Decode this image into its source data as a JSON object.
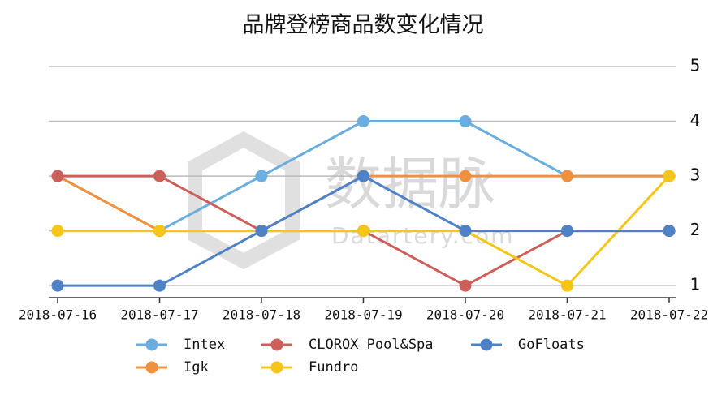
{
  "chart_data": {
    "type": "line",
    "title": "品牌登榜商品数变化情况",
    "categories": [
      "2018-07-16",
      "2018-07-17",
      "2018-07-18",
      "2018-07-19",
      "2018-07-20",
      "2018-07-21",
      "2018-07-22"
    ],
    "series": [
      {
        "name": "Intex",
        "color": "#6aaee0",
        "values": [
          3,
          2,
          3,
          4,
          4,
          3,
          3
        ]
      },
      {
        "name": "Igk",
        "color": "#f0913e",
        "values": [
          3,
          2,
          2,
          3,
          3,
          3,
          3
        ]
      },
      {
        "name": "CLOROX Pool&Spa",
        "color": "#cc5f5a",
        "values": [
          3,
          3,
          2,
          2,
          1,
          2,
          2
        ]
      },
      {
        "name": "Fundro",
        "color": "#f5c518",
        "values": [
          2,
          2,
          2,
          2,
          2,
          1,
          3
        ]
      },
      {
        "name": "GoFloats",
        "color": "#4f81c7",
        "values": [
          1,
          1,
          2,
          3,
          2,
          2,
          2
        ]
      }
    ],
    "ylim": [
      0.78,
      5
    ],
    "yticks": [
      1,
      2,
      3,
      4,
      5
    ],
    "grid": true,
    "y_axis_side": "right",
    "watermark": {
      "logo_text": "数据脉",
      "site": "Datartery.com"
    }
  }
}
